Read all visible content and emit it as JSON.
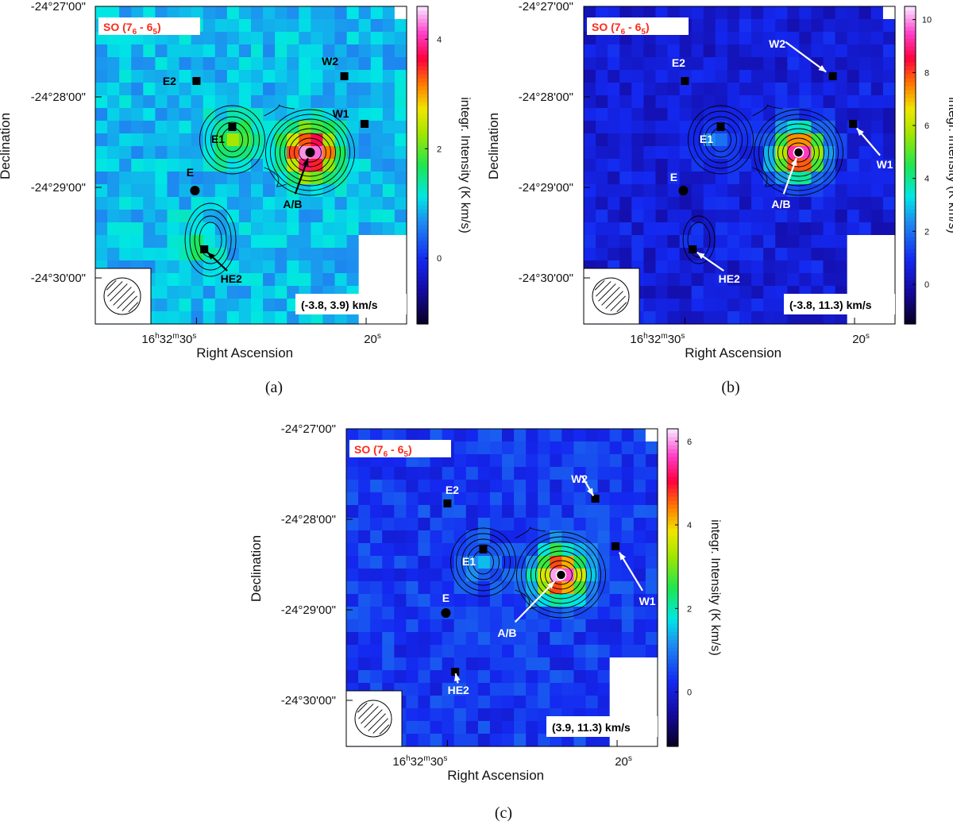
{
  "chart_data": [
    {
      "panel": "a",
      "caption": "(a)",
      "type": "heatmap",
      "title": "SO (7",
      "title_sub": "6",
      "title_mid": " - 6",
      "title_sub2": "5",
      "title_end": ")",
      "velocity_range": "(-3.8, 3.9) km/s",
      "xlabel": "Right Ascension",
      "ylabel": "Declination",
      "colorbar_label": "integr. Intensity (K km/s)",
      "colorbar_ticks": [
        "0",
        "2",
        "4"
      ],
      "colorbar_range": [
        -1.2,
        4.6
      ],
      "x_ticks": [
        {
          "pre": "16",
          "h": "h",
          "mid": "32",
          "m": "m",
          "post": "30",
          "s": "s"
        },
        {
          "pre": "20",
          "s": "s"
        }
      ],
      "y_ticks": [
        "-24°27'00\"",
        "-24°28'00\"",
        "-24°29'00\"",
        "-24°30'00\""
      ],
      "background_level": 0.9,
      "peak": {
        "label": "A/B",
        "value": 4.6
      },
      "sources": [
        {
          "label": "E2",
          "shape": "square"
        },
        {
          "label": "W2",
          "shape": "square"
        },
        {
          "label": "W1",
          "shape": "square"
        },
        {
          "label": "E1",
          "shape": "square"
        },
        {
          "label": "E",
          "shape": "circle"
        },
        {
          "label": "A/B",
          "shape": "circle"
        },
        {
          "label": "HE2",
          "shape": "square"
        }
      ]
    },
    {
      "panel": "b",
      "caption": "(b)",
      "type": "heatmap",
      "title": "SO (7",
      "title_sub": "6",
      "title_mid": " - 6",
      "title_sub2": "5",
      "title_end": ")",
      "velocity_range": "(-3.8, 11.3) km/s",
      "xlabel": "Right Ascension",
      "ylabel": "Declination",
      "colorbar_label": "integr. Intensity (K km/s)",
      "colorbar_ticks": [
        "0",
        "2",
        "4",
        "6",
        "8",
        "10"
      ],
      "colorbar_range": [
        -1.5,
        10.5
      ],
      "x_ticks": [
        {
          "pre": "16",
          "h": "h",
          "mid": "32",
          "m": "m",
          "post": "30",
          "s": "s"
        },
        {
          "pre": "20",
          "s": "s"
        }
      ],
      "y_ticks": [
        "-24°27'00\"",
        "-24°28'00\"",
        "-24°29'00\"",
        "-24°30'00\""
      ],
      "background_level": 0.5,
      "peak": {
        "label": "A/B",
        "value": 10.2
      },
      "sources": [
        {
          "label": "E2",
          "shape": "square"
        },
        {
          "label": "W2",
          "shape": "square"
        },
        {
          "label": "W1",
          "shape": "square"
        },
        {
          "label": "E1",
          "shape": "square"
        },
        {
          "label": "E",
          "shape": "circle"
        },
        {
          "label": "A/B",
          "shape": "circle"
        },
        {
          "label": "HE2",
          "shape": "square"
        }
      ]
    },
    {
      "panel": "c",
      "caption": "(c)",
      "type": "heatmap",
      "title": "SO (7",
      "title_sub": "6",
      "title_mid": " - 6",
      "title_sub2": "5",
      "title_end": ")",
      "velocity_range": "(3.9, 11.3) km/s",
      "xlabel": "Right Ascension",
      "ylabel": "Declination",
      "colorbar_label": "integr. Intensity (K km/s)",
      "colorbar_ticks": [
        "0",
        "2",
        "4",
        "6"
      ],
      "colorbar_range": [
        -1.3,
        6.3
      ],
      "x_ticks": [
        {
          "pre": "16",
          "h": "h",
          "mid": "32",
          "m": "m",
          "post": "30",
          "s": "s"
        },
        {
          "pre": "20",
          "s": "s"
        }
      ],
      "y_ticks": [
        "-24°27'00\"",
        "-24°28'00\"",
        "-24°29'00\"",
        "-24°30'00\""
      ],
      "background_level": 0.35,
      "peak": {
        "label": "A/B",
        "value": 6.1
      },
      "sources": [
        {
          "label": "E2",
          "shape": "square"
        },
        {
          "label": "W2",
          "shape": "square"
        },
        {
          "label": "W1",
          "shape": "square"
        },
        {
          "label": "E1",
          "shape": "square"
        },
        {
          "label": "E",
          "shape": "circle"
        },
        {
          "label": "A/B",
          "shape": "circle"
        },
        {
          "label": "HE2",
          "shape": "square"
        }
      ]
    }
  ]
}
